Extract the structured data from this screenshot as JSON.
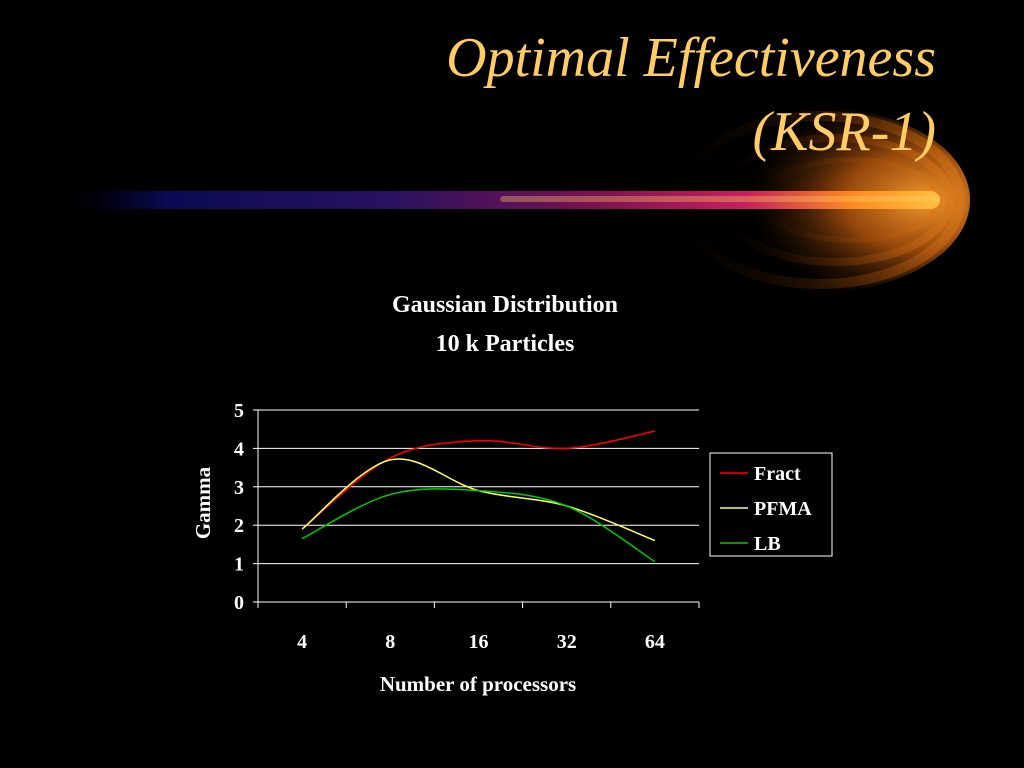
{
  "slide": {
    "title_line_1": "Optimal Effectiveness",
    "title_line_2": "(KSR-1)"
  },
  "colors": {
    "background": "#000000",
    "title": "#FFCC66",
    "text": "#FFFFFF",
    "fract": "#FF0000",
    "pfma": "#FFFF66",
    "lb": "#00CC00"
  },
  "chart_data": {
    "type": "line",
    "title": "Gaussian Distribution",
    "subtitle": "10 k Particles",
    "xlabel": "Number of processors",
    "ylabel": "Gamma",
    "categories": [
      "4",
      "8",
      "16",
      "32",
      "64"
    ],
    "yticks": [
      "0",
      "1",
      "2",
      "3",
      "4",
      "5"
    ],
    "ylim": [
      0,
      5
    ],
    "grid": true,
    "legend": "right",
    "series": [
      {
        "name": "Fract",
        "color": "#FF0000",
        "values": [
          1.9,
          3.75,
          4.2,
          4.0,
          4.45
        ]
      },
      {
        "name": "PFMA",
        "color": "#FFFF66",
        "values": [
          1.9,
          3.7,
          2.9,
          2.5,
          1.6
        ]
      },
      {
        "name": "LB",
        "color": "#00CC00",
        "values": [
          1.65,
          2.8,
          2.9,
          2.5,
          1.05
        ]
      }
    ]
  }
}
